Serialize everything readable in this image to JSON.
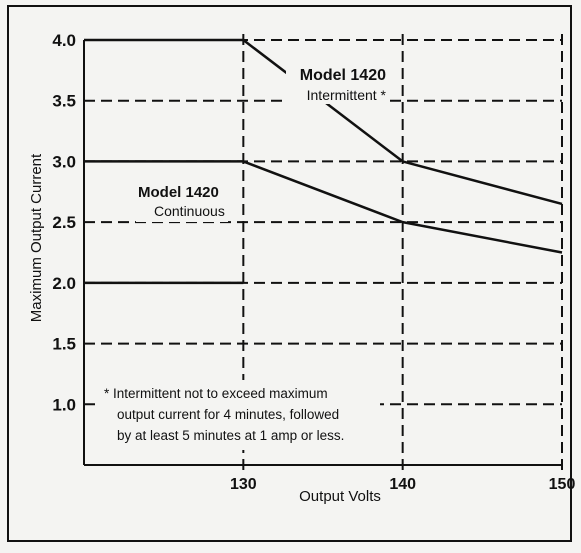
{
  "chart_data": {
    "type": "line",
    "xlabel": "Output Volts",
    "ylabel": "Maximum Output Current",
    "xlim": [
      120,
      150
    ],
    "ylim": [
      0.5,
      4.0
    ],
    "x_ticks": [
      130,
      140,
      150
    ],
    "y_ticks": [
      1.0,
      1.5,
      2.0,
      2.5,
      3.0,
      3.5,
      4.0
    ],
    "x_tick_labels": [
      "130",
      "140",
      "150"
    ],
    "y_tick_labels": [
      "1.0",
      "1.5",
      "2.0",
      "2.5",
      "3.0",
      "3.5",
      "4.0"
    ],
    "grid": true,
    "series": [
      {
        "label_lines": [
          "Model 1420",
          "Intermittent *"
        ],
        "x": [
          120,
          130,
          140,
          150
        ],
        "y": [
          4.0,
          4.0,
          3.0,
          2.65
        ]
      },
      {
        "label_lines": [
          "Model 1420",
          "Continuous"
        ],
        "x": [
          120,
          130,
          140,
          150
        ],
        "y": [
          3.0,
          3.0,
          2.5,
          2.25
        ]
      }
    ],
    "reference_lines": [
      {
        "x": [
          120,
          130
        ],
        "y": [
          2.0,
          2.0
        ]
      }
    ],
    "footnote_lines": [
      "* Intermittent not to exceed maximum",
      "output current for 4 minutes, followed",
      "by at least 5 minutes at 1 amp or less."
    ]
  }
}
